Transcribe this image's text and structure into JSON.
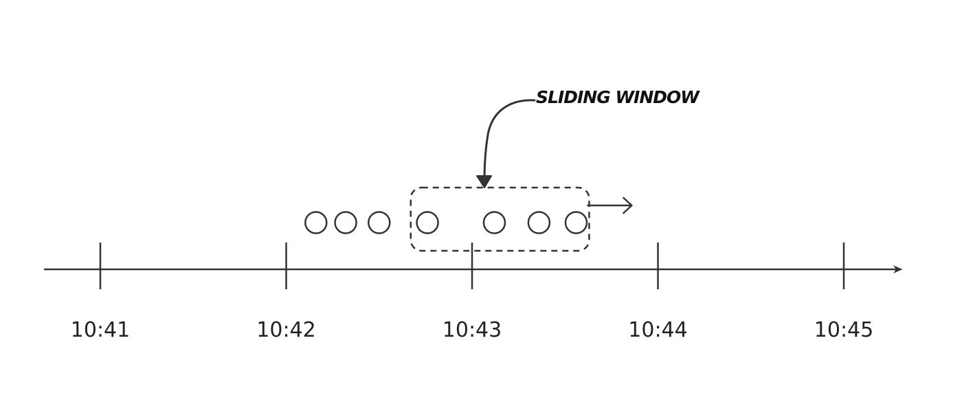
{
  "timeline": {
    "ticks": [
      {
        "label": "10:41",
        "value": 0
      },
      {
        "label": "10:42",
        "value": 1
      },
      {
        "label": "10:43",
        "value": 2
      },
      {
        "label": "10:44",
        "value": 3
      },
      {
        "label": "10:45",
        "value": 4
      }
    ]
  },
  "events": [
    {
      "time": 1.16,
      "in_window": false
    },
    {
      "time": 1.32,
      "in_window": false
    },
    {
      "time": 1.5,
      "in_window": false
    },
    {
      "time": 1.76,
      "in_window": true
    },
    {
      "time": 2.12,
      "in_window": true
    },
    {
      "time": 2.36,
      "in_window": true
    },
    {
      "time": 2.56,
      "in_window": true
    }
  ],
  "window": {
    "start": 1.67,
    "end": 2.63,
    "direction": "right"
  },
  "annotation": {
    "label": "SLIDING WINDOW"
  },
  "colors": {
    "stroke": "#333333",
    "text": "#222222",
    "background": "#ffffff"
  }
}
